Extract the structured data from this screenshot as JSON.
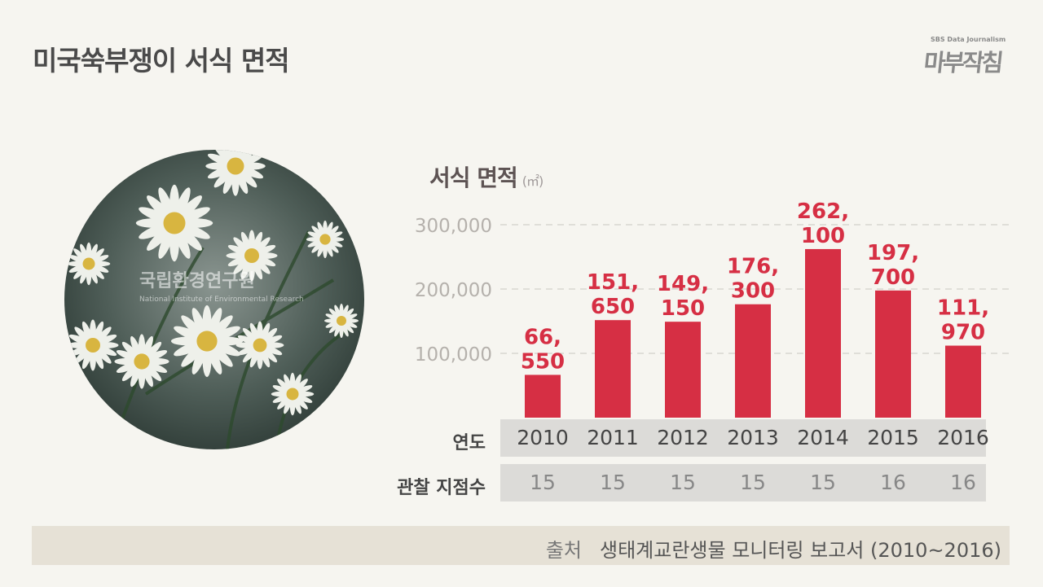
{
  "title": "미국쑥부쟁이 서식 면적",
  "logo": {
    "subtitle": "SBS Data Journalism",
    "name": "마부작침"
  },
  "photo": {
    "watermark_ko": "국립환경연구원",
    "watermark_en": "National Institute of Environmental Research"
  },
  "chart_data": {
    "type": "bar",
    "title": "서식 면적",
    "unit": "(㎡)",
    "categories": [
      "2010",
      "2011",
      "2012",
      "2013",
      "2014",
      "2015",
      "2016"
    ],
    "values": [
      66550,
      151650,
      149150,
      176300,
      262100,
      197700,
      111970
    ],
    "value_labels": [
      [
        "66,",
        "550"
      ],
      [
        "151,",
        "650"
      ],
      [
        "149,",
        "150"
      ],
      [
        "176,",
        "300"
      ],
      [
        "262,",
        "100"
      ],
      [
        "197,",
        "700"
      ],
      [
        "111,",
        "970"
      ]
    ],
    "yticks": [
      "100,000",
      "200,000",
      "300,000"
    ],
    "ytick_values": [
      100000,
      200000,
      300000
    ],
    "ylim": [
      0,
      300000
    ],
    "grid": true,
    "bar_color": "#d62f44",
    "xlabel": "연도",
    "observation_label": "관찰 지점수",
    "observation_counts": [
      "15",
      "15",
      "15",
      "15",
      "15",
      "16",
      "16"
    ]
  },
  "source": {
    "label": "출처",
    "text": "생태계교란생물 모니터링 보고서 (2010~2016)"
  }
}
